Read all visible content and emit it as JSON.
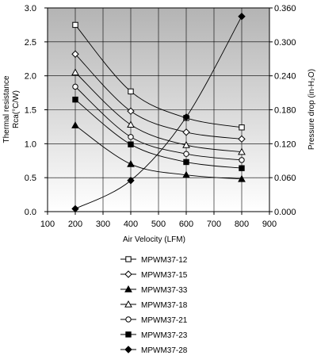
{
  "chart_data": {
    "type": "line",
    "xlabel": "Air Velocity (LFM)",
    "ylabel_left": "Thermal resistance Rca(°C/W)",
    "ylabel_left_lines": [
      "Thermal resistance",
      "Rca(°C/W)"
    ],
    "ylabel_right": "Pressure drop (in-H₂O)",
    "xlim": [
      100,
      900
    ],
    "ylim_left": [
      0,
      3.0
    ],
    "ylim_right": [
      0,
      0.36
    ],
    "x_ticks": [
      100,
      200,
      300,
      400,
      500,
      600,
      700,
      800,
      900
    ],
    "x_tick_labels": [
      "100",
      "200",
      "300",
      "400",
      "500",
      "600",
      "700",
      "800",
      "900"
    ],
    "y_left_ticks": [
      0,
      0.5,
      1.0,
      1.5,
      2.0,
      2.5,
      3.0
    ],
    "y_left_tick_labels": [
      "0.0",
      "0.5",
      "1.0",
      "1.5",
      "2.0",
      "2.5",
      "3.0"
    ],
    "y_right_ticks": [
      0,
      0.06,
      0.12,
      0.18,
      0.24,
      0.3,
      0.36
    ],
    "y_right_tick_labels": [
      "0.000",
      "0.060",
      "0.120",
      "0.180",
      "0.240",
      "0.300",
      "0.360"
    ],
    "grid": true,
    "background": "gradient-grey",
    "legend_position": "below",
    "x": [
      200,
      400,
      600,
      800
    ],
    "series": [
      {
        "name": "MPWM37-12",
        "marker": "square-open",
        "axis": "left",
        "values": [
          2.75,
          1.77,
          1.38,
          1.24
        ]
      },
      {
        "name": "MPWM37-15",
        "marker": "diamond-open",
        "axis": "left",
        "values": [
          2.32,
          1.48,
          1.17,
          1.07
        ]
      },
      {
        "name": "MPWM37-33",
        "marker": "triangle-filled",
        "axis": "left",
        "values": [
          1.27,
          0.7,
          0.54,
          0.48
        ]
      },
      {
        "name": "MPWM37-18",
        "marker": "triangle-open",
        "axis": "left",
        "values": [
          2.05,
          1.28,
          0.98,
          0.88
        ]
      },
      {
        "name": "MPWM37-21",
        "marker": "circle-open",
        "axis": "left",
        "values": [
          1.84,
          1.1,
          0.85,
          0.76
        ]
      },
      {
        "name": "MPWM37-23",
        "marker": "square-filled",
        "axis": "left",
        "values": [
          1.65,
          0.99,
          0.73,
          0.64
        ]
      },
      {
        "name": "MPWM37-28",
        "marker": "diamond-filled",
        "axis": "right",
        "values": [
          0.005,
          0.055,
          0.167,
          0.345
        ]
      }
    ]
  }
}
